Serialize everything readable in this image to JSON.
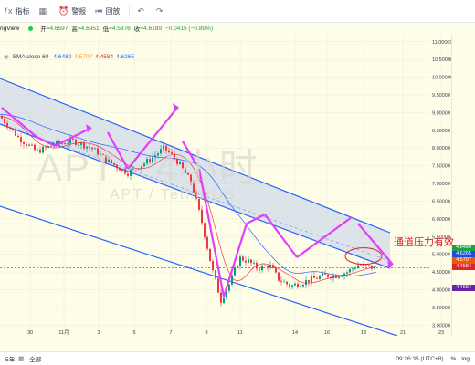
{
  "toolbar": {
    "items": [
      {
        "label": "指标",
        "icon": "indicator-icon"
      },
      {
        "label": "",
        "icon": "grid-icon"
      },
      {
        "label": "警报",
        "icon": "alarm-icon"
      },
      {
        "label": "回放",
        "icon": "replay-icon"
      }
    ]
  },
  "symbol_bar": {
    "name": "ngView",
    "o_label": "开",
    "o": "=4.6597",
    "h_label": "高",
    "h": "=4.6951",
    "l_label": "低",
    "l": "=4.5876",
    "c_label": "收",
    "c": "=4.6189",
    "chg": "−0.0415 (−0.89%)"
  },
  "indicator": {
    "label": "SMA close 60",
    "v1": "4.6480",
    "v2": "4.5707",
    "v3": "4.4584",
    "v4": "4.6265"
  },
  "watermark": {
    "symbol": "APT · 4小时",
    "sub": "APT / TetherUS"
  },
  "annotation": "通道压力有效",
  "bottom": {
    "timeframes": "5年",
    "all": "全部",
    "clock": "09:26:35 (UTC+8)",
    "percent": "%",
    "log": "log"
  },
  "chart_data": {
    "type": "candlestick",
    "y_axis": {
      "ticks": [
        "11.00000",
        "10.50000",
        "10.00000",
        "9.50000",
        "9.00000",
        "8.50000",
        "8.00000",
        "7.50000",
        "7.00000",
        "6.50000",
        "6.00000",
        "5.50000",
        "5.00000",
        "4.50000",
        "4.00000",
        "3.50000",
        "3.00000"
      ],
      "range": [
        2.7,
        11.2
      ]
    },
    "x_axis": {
      "ticks": [
        "30",
        "11月",
        "3",
        "5",
        "7",
        "9",
        "11",
        "14",
        "16",
        "18",
        "21",
        "23"
      ]
    },
    "price_labels": [
      {
        "value": "4.6480",
        "color": "#16a34a"
      },
      {
        "value": "4.6265",
        "color": "#1d4ed8"
      },
      {
        "value": "4.5707",
        "color": "#ea580c"
      },
      {
        "value": "4.4584",
        "color": "#dc2626"
      },
      {
        "value": "4.4584",
        "color": "#6b21a8"
      }
    ],
    "colors": {
      "up": "#089981",
      "down": "#f23645",
      "channel": "#2962ff",
      "channel_fill": "#bfcde9",
      "arrows": "#e040fb",
      "sma60": "#f23645",
      "sma_blue": "#2962ff",
      "price_line": "#f23645",
      "annotation": "#e11d2e"
    }
  }
}
